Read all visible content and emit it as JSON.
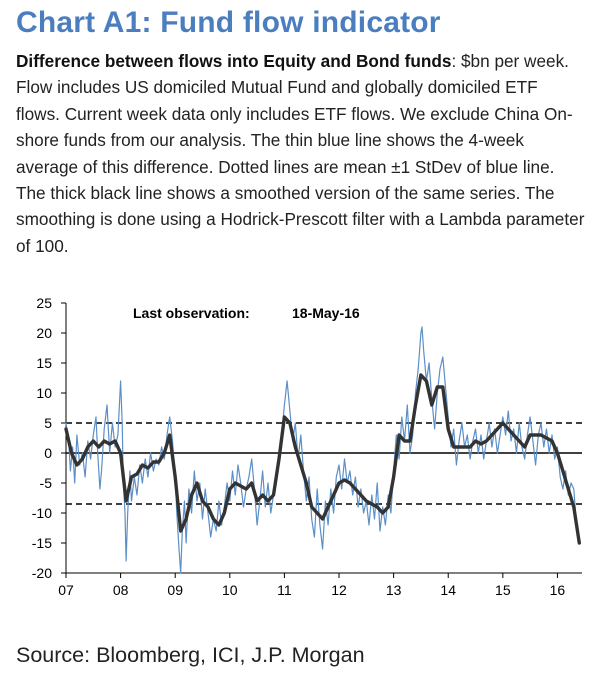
{
  "header": {
    "title": "Chart A1: Fund flow indicator",
    "desc_bold": "Difference between flows into Equity and Bond funds",
    "desc_rest": ": $bn per week. Flow includes US domiciled Mutual Fund and globally domiciled ETF flows. Current week data only includes ETF flows. We exclude China On-shore funds from our analysis. The thin blue line shows the 4-week average of this difference. Dotted lines are mean ±1 StDev of blue line. The thick black line shows a smoothed version of the same series. The smoothing is done using a Hodrick-Prescott filter with a Lambda parameter of 100."
  },
  "annotation": {
    "label": "Last observation:",
    "date": "18-May-16"
  },
  "footer": {
    "source": "Source: Bloomberg, ICI, J.P. Morgan"
  },
  "colors": {
    "title": "#4a7ebf",
    "thin_line": "#5b8fc7",
    "thick_line": "#333333"
  },
  "chart_data": {
    "type": "line",
    "x_label": "",
    "y_label": "",
    "ylim": [
      -20,
      25
    ],
    "xlim": [
      2007.0,
      2016.45
    ],
    "y_ticks": [
      "25",
      "20",
      "15",
      "10",
      "5",
      "0",
      "-5",
      "-10",
      "-15",
      "-20"
    ],
    "x_ticks": [
      {
        "label": "07",
        "x": 2007.0
      },
      {
        "label": "08",
        "x": 2008.0
      },
      {
        "label": "09",
        "x": 2009.0
      },
      {
        "label": "10",
        "x": 2010.0
      },
      {
        "label": "11",
        "x": 2011.0
      },
      {
        "label": "12",
        "x": 2012.0
      },
      {
        "label": "13",
        "x": 2013.0
      },
      {
        "label": "14",
        "x": 2014.0
      },
      {
        "label": "15",
        "x": 2015.0
      },
      {
        "label": "16",
        "x": 2016.0
      }
    ],
    "reference_lines": {
      "upper": 5,
      "zero": 0,
      "lower": -8.5
    },
    "series": [
      {
        "style": "thin",
        "points": [
          [
            2007.0,
            5
          ],
          [
            2007.05,
            2
          ],
          [
            2007.08,
            -3
          ],
          [
            2007.12,
            1
          ],
          [
            2007.16,
            -5
          ],
          [
            2007.2,
            3
          ],
          [
            2007.25,
            -2
          ],
          [
            2007.3,
            0
          ],
          [
            2007.35,
            -4
          ],
          [
            2007.4,
            2
          ],
          [
            2007.45,
            -1
          ],
          [
            2007.5,
            3
          ],
          [
            2007.55,
            6
          ],
          [
            2007.58,
            0
          ],
          [
            2007.62,
            -6
          ],
          [
            2007.65,
            -3
          ],
          [
            2007.7,
            4
          ],
          [
            2007.75,
            8
          ],
          [
            2007.8,
            0
          ],
          [
            2007.85,
            5
          ],
          [
            2007.9,
            1
          ],
          [
            2007.95,
            3
          ],
          [
            2008.0,
            12
          ],
          [
            2008.03,
            5
          ],
          [
            2008.05,
            -5
          ],
          [
            2008.08,
            -10
          ],
          [
            2008.1,
            -18
          ],
          [
            2008.13,
            -10
          ],
          [
            2008.17,
            -3
          ],
          [
            2008.2,
            -8
          ],
          [
            2008.25,
            -4
          ],
          [
            2008.3,
            -7
          ],
          [
            2008.35,
            -2
          ],
          [
            2008.4,
            -5
          ],
          [
            2008.45,
            -1
          ],
          [
            2008.5,
            -4
          ],
          [
            2008.55,
            0
          ],
          [
            2008.6,
            -3
          ],
          [
            2008.65,
            -1
          ],
          [
            2008.7,
            -2
          ],
          [
            2008.75,
            1
          ],
          [
            2008.8,
            -1
          ],
          [
            2008.85,
            3
          ],
          [
            2008.9,
            6
          ],
          [
            2008.95,
            2
          ],
          [
            2009.0,
            -4
          ],
          [
            2009.03,
            -10
          ],
          [
            2009.07,
            -16
          ],
          [
            2009.1,
            -20
          ],
          [
            2009.13,
            -13
          ],
          [
            2009.17,
            -8
          ],
          [
            2009.2,
            -15
          ],
          [
            2009.25,
            -6
          ],
          [
            2009.3,
            -10
          ],
          [
            2009.35,
            -3
          ],
          [
            2009.4,
            -8
          ],
          [
            2009.45,
            -5
          ],
          [
            2009.5,
            -11
          ],
          [
            2009.55,
            -6
          ],
          [
            2009.6,
            -10
          ],
          [
            2009.65,
            -14
          ],
          [
            2009.7,
            -11
          ],
          [
            2009.75,
            -13
          ],
          [
            2009.8,
            -8
          ],
          [
            2009.85,
            -12
          ],
          [
            2009.9,
            -9
          ],
          [
            2009.95,
            -5
          ],
          [
            2010.0,
            -8
          ],
          [
            2010.05,
            -3
          ],
          [
            2010.1,
            -7
          ],
          [
            2010.15,
            -2
          ],
          [
            2010.2,
            -5
          ],
          [
            2010.25,
            -9
          ],
          [
            2010.3,
            -6
          ],
          [
            2010.35,
            -4
          ],
          [
            2010.4,
            -1
          ],
          [
            2010.45,
            -6
          ],
          [
            2010.5,
            -12
          ],
          [
            2010.55,
            -8
          ],
          [
            2010.6,
            -3
          ],
          [
            2010.65,
            -9
          ],
          [
            2010.7,
            -5
          ],
          [
            2010.75,
            -10
          ],
          [
            2010.8,
            -7
          ],
          [
            2010.85,
            -3
          ],
          [
            2010.9,
            0
          ],
          [
            2010.95,
            3
          ],
          [
            2011.0,
            8
          ],
          [
            2011.05,
            12
          ],
          [
            2011.1,
            7
          ],
          [
            2011.15,
            2
          ],
          [
            2011.2,
            5
          ],
          [
            2011.25,
            -1
          ],
          [
            2011.3,
            3
          ],
          [
            2011.35,
            -3
          ],
          [
            2011.4,
            -8
          ],
          [
            2011.45,
            -4
          ],
          [
            2011.5,
            -11
          ],
          [
            2011.55,
            -14
          ],
          [
            2011.6,
            -6
          ],
          [
            2011.65,
            -12
          ],
          [
            2011.7,
            -16
          ],
          [
            2011.75,
            -8
          ],
          [
            2011.8,
            -12
          ],
          [
            2011.85,
            -6
          ],
          [
            2011.9,
            -10
          ],
          [
            2011.95,
            -4
          ],
          [
            2012.0,
            -2
          ],
          [
            2012.05,
            -6
          ],
          [
            2012.1,
            -1
          ],
          [
            2012.15,
            -5
          ],
          [
            2012.2,
            -3
          ],
          [
            2012.25,
            -7
          ],
          [
            2012.3,
            -4
          ],
          [
            2012.35,
            -9
          ],
          [
            2012.4,
            -6
          ],
          [
            2012.45,
            -10
          ],
          [
            2012.5,
            -8
          ],
          [
            2012.55,
            -12
          ],
          [
            2012.6,
            -7
          ],
          [
            2012.65,
            -11
          ],
          [
            2012.7,
            -5
          ],
          [
            2012.75,
            -13
          ],
          [
            2012.8,
            -9
          ],
          [
            2012.85,
            -12
          ],
          [
            2012.9,
            -7
          ],
          [
            2012.95,
            -10
          ],
          [
            2013.0,
            -3
          ],
          [
            2013.05,
            3
          ],
          [
            2013.1,
            -1
          ],
          [
            2013.15,
            6
          ],
          [
            2013.2,
            2
          ],
          [
            2013.25,
            8
          ],
          [
            2013.3,
            0
          ],
          [
            2013.35,
            3
          ],
          [
            2013.4,
            10
          ],
          [
            2013.45,
            14
          ],
          [
            2013.5,
            20
          ],
          [
            2013.52,
            21
          ],
          [
            2013.55,
            17
          ],
          [
            2013.6,
            12
          ],
          [
            2013.65,
            15
          ],
          [
            2013.7,
            9
          ],
          [
            2013.75,
            4
          ],
          [
            2013.8,
            10
          ],
          [
            2013.85,
            14
          ],
          [
            2013.9,
            16
          ],
          [
            2013.95,
            11
          ],
          [
            2014.0,
            6
          ],
          [
            2014.05,
            1
          ],
          [
            2014.1,
            4
          ],
          [
            2014.15,
            -2
          ],
          [
            2014.2,
            2
          ],
          [
            2014.25,
            5
          ],
          [
            2014.3,
            1
          ],
          [
            2014.35,
            3
          ],
          [
            2014.4,
            -1
          ],
          [
            2014.45,
            2
          ],
          [
            2014.5,
            4
          ],
          [
            2014.55,
            0
          ],
          [
            2014.6,
            3
          ],
          [
            2014.65,
            -1
          ],
          [
            2014.7,
            2
          ],
          [
            2014.75,
            5
          ],
          [
            2014.8,
            1
          ],
          [
            2014.85,
            4
          ],
          [
            2014.9,
            0
          ],
          [
            2014.95,
            3
          ],
          [
            2015.0,
            6
          ],
          [
            2015.05,
            3
          ],
          [
            2015.1,
            7
          ],
          [
            2015.15,
            2
          ],
          [
            2015.2,
            4
          ],
          [
            2015.25,
            0
          ],
          [
            2015.3,
            5
          ],
          [
            2015.35,
            1
          ],
          [
            2015.4,
            -1
          ],
          [
            2015.45,
            3
          ],
          [
            2015.5,
            6
          ],
          [
            2015.55,
            2
          ],
          [
            2015.6,
            -2
          ],
          [
            2015.65,
            3
          ],
          [
            2015.7,
            5
          ],
          [
            2015.75,
            1
          ],
          [
            2015.8,
            4
          ],
          [
            2015.85,
            0
          ],
          [
            2015.9,
            3
          ],
          [
            2015.95,
            -1
          ],
          [
            2016.0,
            1
          ],
          [
            2016.05,
            -4
          ],
          [
            2016.1,
            -6
          ],
          [
            2016.15,
            -3
          ],
          [
            2016.2,
            -7
          ],
          [
            2016.25,
            -5
          ],
          [
            2016.3,
            -6
          ],
          [
            2016.35,
            -12
          ],
          [
            2016.4,
            -15
          ]
        ]
      },
      {
        "style": "thick",
        "points": [
          [
            2007.0,
            4
          ],
          [
            2007.1,
            0
          ],
          [
            2007.2,
            -2
          ],
          [
            2007.3,
            -1
          ],
          [
            2007.4,
            1
          ],
          [
            2007.5,
            2
          ],
          [
            2007.6,
            1
          ],
          [
            2007.7,
            2
          ],
          [
            2007.8,
            1.5
          ],
          [
            2007.9,
            2
          ],
          [
            2008.0,
            0
          ],
          [
            2008.1,
            -8
          ],
          [
            2008.2,
            -4
          ],
          [
            2008.3,
            -3.5
          ],
          [
            2008.4,
            -2
          ],
          [
            2008.5,
            -2.5
          ],
          [
            2008.6,
            -1.5
          ],
          [
            2008.7,
            -1.5
          ],
          [
            2008.8,
            0
          ],
          [
            2008.9,
            3
          ],
          [
            2009.0,
            -4
          ],
          [
            2009.1,
            -13
          ],
          [
            2009.2,
            -11
          ],
          [
            2009.3,
            -7
          ],
          [
            2009.4,
            -5
          ],
          [
            2009.5,
            -8
          ],
          [
            2009.6,
            -9
          ],
          [
            2009.7,
            -11
          ],
          [
            2009.8,
            -12
          ],
          [
            2009.9,
            -10
          ],
          [
            2010.0,
            -6
          ],
          [
            2010.1,
            -5
          ],
          [
            2010.2,
            -5.5
          ],
          [
            2010.3,
            -6
          ],
          [
            2010.4,
            -5
          ],
          [
            2010.5,
            -8
          ],
          [
            2010.6,
            -7
          ],
          [
            2010.7,
            -8
          ],
          [
            2010.8,
            -7
          ],
          [
            2010.9,
            -1
          ],
          [
            2011.0,
            6
          ],
          [
            2011.1,
            5
          ],
          [
            2011.2,
            1
          ],
          [
            2011.3,
            -2
          ],
          [
            2011.4,
            -5
          ],
          [
            2011.5,
            -9
          ],
          [
            2011.6,
            -10
          ],
          [
            2011.7,
            -11
          ],
          [
            2011.8,
            -9
          ],
          [
            2011.9,
            -7
          ],
          [
            2012.0,
            -5
          ],
          [
            2012.1,
            -4.5
          ],
          [
            2012.2,
            -5
          ],
          [
            2012.3,
            -6
          ],
          [
            2012.4,
            -7
          ],
          [
            2012.5,
            -8
          ],
          [
            2012.6,
            -8.5
          ],
          [
            2012.7,
            -9
          ],
          [
            2012.8,
            -10
          ],
          [
            2012.9,
            -9
          ],
          [
            2013.0,
            -4
          ],
          [
            2013.1,
            3
          ],
          [
            2013.2,
            2
          ],
          [
            2013.3,
            2
          ],
          [
            2013.4,
            8
          ],
          [
            2013.5,
            13
          ],
          [
            2013.6,
            12
          ],
          [
            2013.7,
            8
          ],
          [
            2013.8,
            11
          ],
          [
            2013.9,
            11
          ],
          [
            2014.0,
            4
          ],
          [
            2014.1,
            1
          ],
          [
            2014.2,
            1
          ],
          [
            2014.3,
            1
          ],
          [
            2014.4,
            1
          ],
          [
            2014.5,
            2
          ],
          [
            2014.6,
            1.5
          ],
          [
            2014.7,
            2
          ],
          [
            2014.8,
            3
          ],
          [
            2014.9,
            4
          ],
          [
            2015.0,
            5
          ],
          [
            2015.1,
            4
          ],
          [
            2015.2,
            3
          ],
          [
            2015.3,
            2
          ],
          [
            2015.4,
            1
          ],
          [
            2015.5,
            3
          ],
          [
            2015.6,
            3
          ],
          [
            2015.7,
            3
          ],
          [
            2015.8,
            2.5
          ],
          [
            2015.9,
            2
          ],
          [
            2016.0,
            0
          ],
          [
            2016.1,
            -3
          ],
          [
            2016.2,
            -6
          ],
          [
            2016.3,
            -9
          ],
          [
            2016.4,
            -15
          ]
        ]
      }
    ]
  }
}
